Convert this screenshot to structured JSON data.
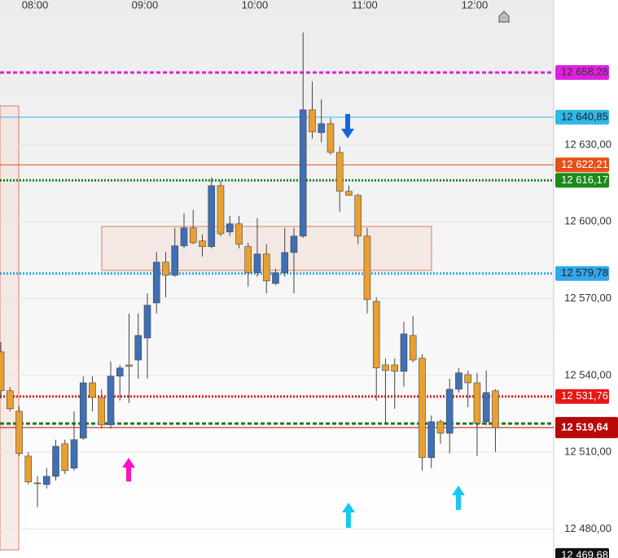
{
  "chart_data": {
    "type": "candlestick",
    "xlim": [
      -0.09,
      60.36
    ],
    "xticks": [
      {
        "value": 3.73,
        "label": "08:00"
      },
      {
        "value": 15.73,
        "label": "09:00"
      },
      {
        "value": 27.73,
        "label": "10:00"
      },
      {
        "value": 39.73,
        "label": "11:00"
      },
      {
        "value": 51.73,
        "label": "12:00"
      }
    ],
    "ylim": [
      12468.7,
      12686.6
    ],
    "yticks": [
      {
        "value": 12630,
        "label": "12 630,00"
      },
      {
        "value": 12600,
        "label": "12 600,00"
      },
      {
        "value": 12570,
        "label": "12 570,00"
      },
      {
        "value": 12540,
        "label": "12 540,00"
      },
      {
        "value": 12510,
        "label": "12 510,00"
      },
      {
        "value": 12480,
        "label": "12 480,00"
      }
    ],
    "up_color": "#3f6fb5",
    "down_color": "#e8a030",
    "open": [
      12549.2,
      12534,
      12526,
      12508.5,
      12498,
      12497.4,
      12500.6,
      12513.3,
      12503.8,
      12515.5,
      12537.1,
      12531.4,
      12520.7,
      12539.7,
      12544.1,
      12546,
      12554.6,
      12568.3,
      12584.2,
      12579.1,
      12590.6,
      12597.6,
      12592.5,
      12590.3,
      12614.1,
      12596,
      12599.2,
      12590.3,
      12580.1,
      12587.4,
      12575.9,
      12580.1,
      12588,
      12594.4,
      12643.7,
      12634.8,
      12638.3,
      12627.1,
      12611.9,
      12610.3,
      12594.4,
      12568.9,
      12544.1,
      12544.1,
      12541.6,
      12555.6,
      12546.7,
      12507.9,
      12521.9,
      12517.4,
      12534.6,
      12540.3,
      12537.1,
      12521.9,
      12534
    ],
    "high": [
      12553,
      12535.5,
      12528,
      12510,
      12500.6,
      12503.8,
      12514.9,
      12514.9,
      12526,
      12539.7,
      12539.7,
      12534.6,
      12545.5,
      12544.1,
      12564.2,
      12564.2,
      12572.1,
      12588.2,
      12588.2,
      12597.6,
      12603.3,
      12604.6,
      12595,
      12617.3,
      12616,
      12602.3,
      12602.3,
      12591.8,
      12601.4,
      12591.2,
      12581.7,
      12597.6,
      12597.6,
      12673.9,
      12654.8,
      12647.8,
      12640.5,
      12629.4,
      12614.1,
      12610.9,
      12597.6,
      12570.5,
      12546.7,
      12546.7,
      12561,
      12563.2,
      12548.3,
      12524.4,
      12522.8,
      12538.7,
      12542.9,
      12541.9,
      12541,
      12541.9,
      12534.6
    ],
    "low": [
      12531,
      12526,
      12508.5,
      12497.5,
      12488.5,
      12495.8,
      12499,
      12501.5,
      12502.8,
      12514.9,
      12526,
      12519.2,
      12519.2,
      12530.1,
      12529.2,
      12538.7,
      12538.7,
      12564.2,
      12570.5,
      12578.5,
      12589.6,
      12591.2,
      12586.4,
      12589.6,
      12594.4,
      12594.4,
      12589.6,
      12574.7,
      12578.5,
      12572.1,
      12575.3,
      12578.5,
      12572.1,
      12593.7,
      12632.5,
      12631,
      12626.2,
      12603.9,
      12610.3,
      12591.2,
      12564.2,
      12530.1,
      12521.2,
      12527,
      12535.6,
      12545.1,
      12502.8,
      12503.8,
      12513.3,
      12509.5,
      12533.3,
      12527.6,
      12508.5,
      12520.6,
      12510.1
    ],
    "close": [
      12534,
      12527,
      12509.5,
      12498.4,
      12497.7,
      12500.6,
      12512.3,
      12502.8,
      12514.9,
      12537.1,
      12531.4,
      12520.7,
      12539.7,
      12542.9,
      12543.5,
      12555.6,
      12567.4,
      12584.2,
      12579.1,
      12590.6,
      12597.6,
      12591.8,
      12590.3,
      12614.1,
      12595.3,
      12599.2,
      12591.2,
      12580.1,
      12587.4,
      12576.9,
      12580.1,
      12588,
      12594.4,
      12643.7,
      12635.1,
      12638.3,
      12627.1,
      12611.9,
      12610.3,
      12594.4,
      12569.6,
      12542.9,
      12541.9,
      12541.6,
      12556.2,
      12546,
      12507.9,
      12521.9,
      12517.4,
      12534.6,
      12541,
      12537.1,
      12521.3,
      12533.3,
      12519.6
    ],
    "levels": [
      {
        "value": 12658.28,
        "label": "12 658,28",
        "color": "#e020e0",
        "text_color": "#333",
        "style": "dashed"
      },
      {
        "value": 12640.85,
        "label": "12 640,85",
        "color": "#30b8e8",
        "text_color": "#222",
        "style": "solid"
      },
      {
        "value": 12622.21,
        "label": "12 622,21",
        "color": "#e8501a",
        "text_color": "#fff",
        "style": "solid"
      },
      {
        "value": 12616.17,
        "label": "12 616,17",
        "color": "#1a8a1a",
        "text_color": "#fff",
        "style": "dotted"
      },
      {
        "value": 12579.78,
        "label": "12 579,78",
        "color": "#30a8ee",
        "text_color": "#222",
        "style": "dotted"
      },
      {
        "value": 12531.76,
        "label": "12 531,76",
        "color": "#e81818",
        "text_color": "#fff",
        "style": "dotted"
      },
      {
        "value": 12521.2,
        "color": "#1a7a1a",
        "style": "dashed"
      },
      {
        "value": 12519.64,
        "label": "12 519,64",
        "color": "#b80808",
        "text_color": "#fff",
        "style": "solid"
      },
      {
        "value": 12469.68,
        "label": "12 469,68",
        "color": "#111111",
        "text_color": "#fff",
        "style": "none"
      }
    ]
  }
}
